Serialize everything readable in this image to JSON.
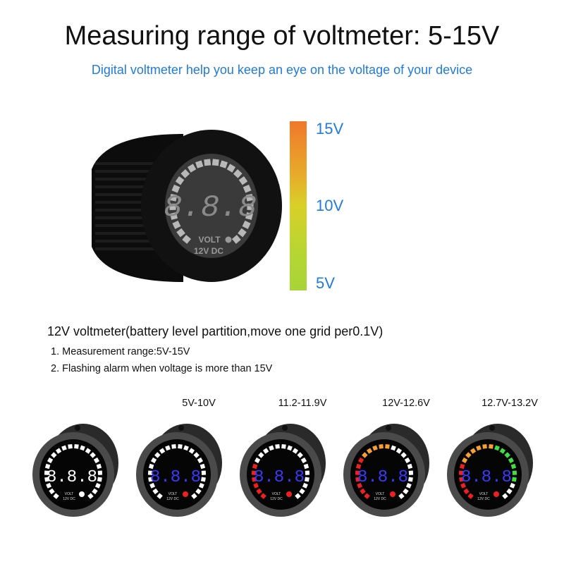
{
  "header": {
    "title": "Measuring range of voltmeter: 5-15V",
    "subtitle": "Digital voltmeter help you  keep an eye on the voltage of your device"
  },
  "product": {
    "face_label": "VOLT",
    "rating_label": "12V DC",
    "digits": "8.8.8"
  },
  "scale": {
    "labels": [
      "15V",
      "10V",
      "5V"
    ],
    "colors": {
      "top": "#f0782a",
      "middle": "#d8d028",
      "bottom": "#a8d438"
    }
  },
  "description": {
    "heading": "12V voltmeter(battery level partition,move one grid per0.1V)",
    "notes": [
      "1. Measurement range:5V-15V",
      "2. Flashing alarm when voltage is more than 15V"
    ]
  },
  "states": [
    {
      "label": "",
      "digit_color": "#ffffff",
      "red": 0,
      "orange": 0,
      "green": 0
    },
    {
      "label": "5V-10V",
      "digit_color": "#3a3aff",
      "red": 0,
      "orange": 0,
      "green": 0
    },
    {
      "label": "11.2-11.9V",
      "digit_color": "#3a3aff",
      "red": 6,
      "orange": 0,
      "green": 0
    },
    {
      "label": "12V-12.6V",
      "digit_color": "#3a3aff",
      "red": 7,
      "orange": 5,
      "green": 0
    },
    {
      "label": "12.7V-13.2V",
      "digit_color": "#3a3aff",
      "red": 6,
      "orange": 6,
      "green": 7
    }
  ],
  "colors": {
    "red": "#f02020",
    "orange": "#f5a030",
    "green": "#40e040",
    "white": "#ffffff",
    "accent": "#1f7be0"
  }
}
